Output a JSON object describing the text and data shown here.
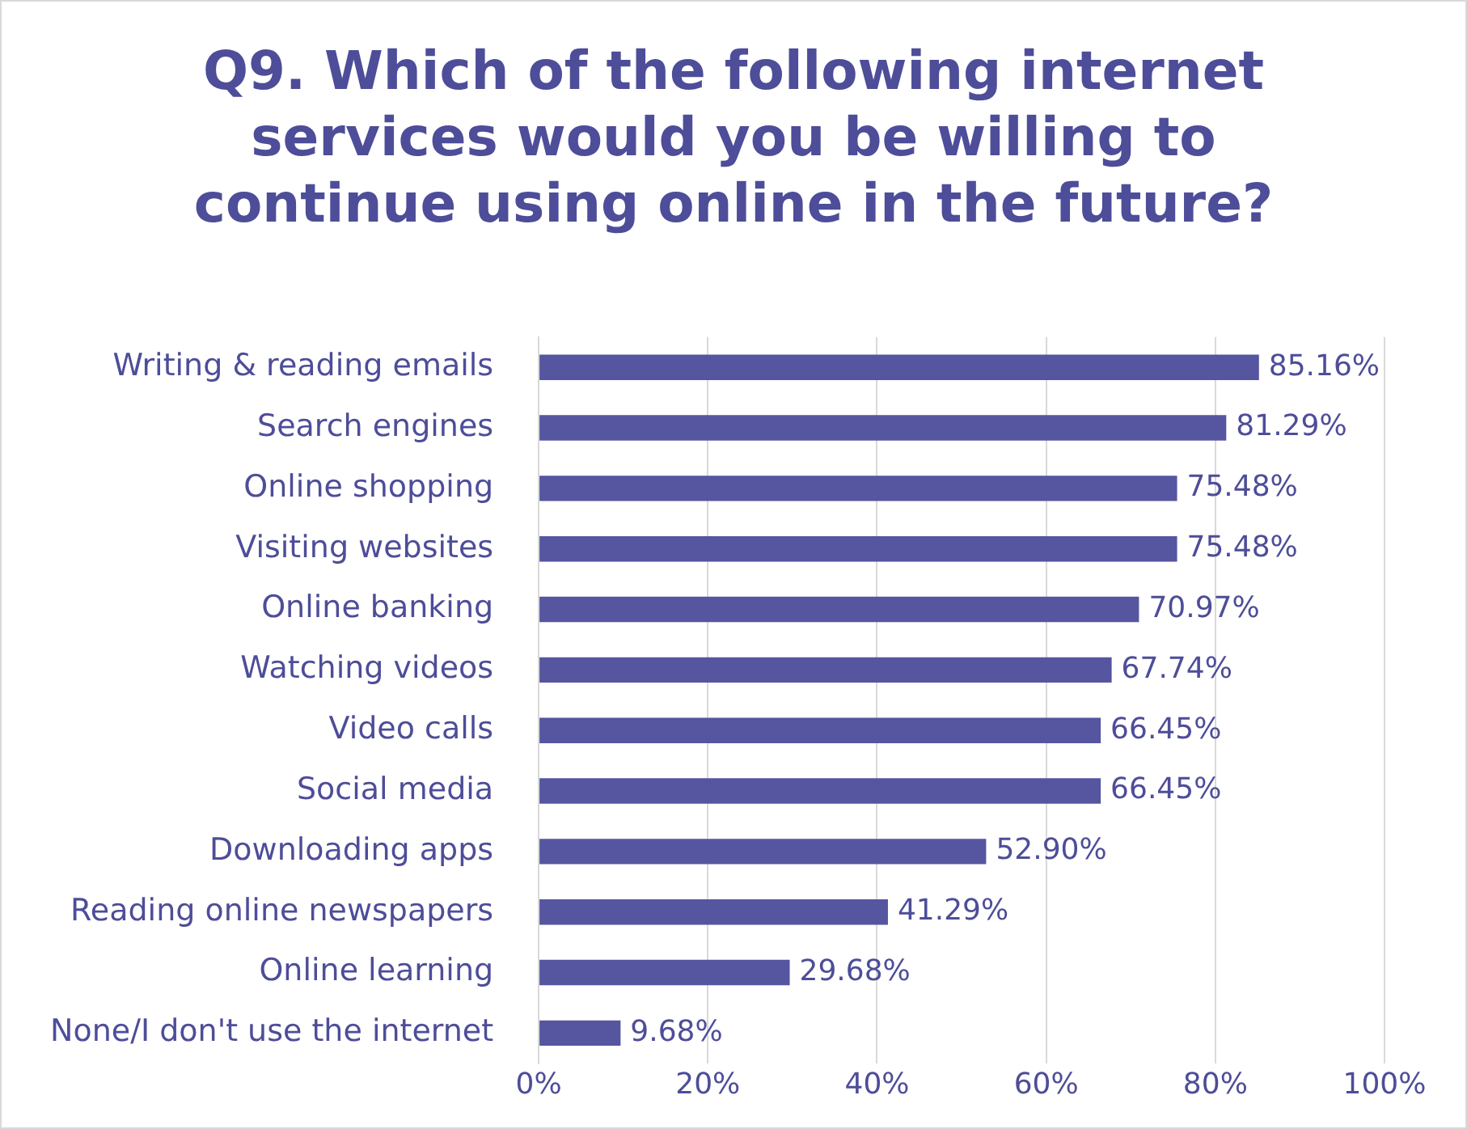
{
  "chart_data": {
    "type": "bar",
    "orientation": "horizontal",
    "title": "Q9. Which of the following internet services would you be willing to continue using online in the future?",
    "categories": [
      "Writing & reading emails",
      "Search engines",
      "Online shopping",
      "Visiting websites",
      "Online banking",
      "Watching videos",
      "Video calls",
      "Social media",
      "Downloading apps",
      "Reading online newspapers",
      "Online learning",
      "None/I don't use the internet"
    ],
    "values": [
      85.16,
      81.29,
      75.48,
      75.48,
      70.97,
      67.74,
      66.45,
      66.45,
      52.9,
      41.29,
      29.68,
      9.68
    ],
    "value_labels": [
      "85.16%",
      "81.29%",
      "75.48%",
      "75.48%",
      "70.97%",
      "67.74%",
      "66.45%",
      "66.45%",
      "52.90%",
      "41.29%",
      "29.68%",
      "9.68%"
    ],
    "color": "#5555a0",
    "xlim": [
      0,
      100
    ],
    "xticks": [
      {
        "value": 0,
        "label": "0%"
      },
      {
        "value": 20,
        "label": "20%"
      },
      {
        "value": 40,
        "label": "40%"
      },
      {
        "value": 60,
        "label": "60%"
      },
      {
        "value": 80,
        "label": "80%"
      },
      {
        "value": 100,
        "label": "100%"
      }
    ],
    "grid": "x",
    "legend": false
  }
}
